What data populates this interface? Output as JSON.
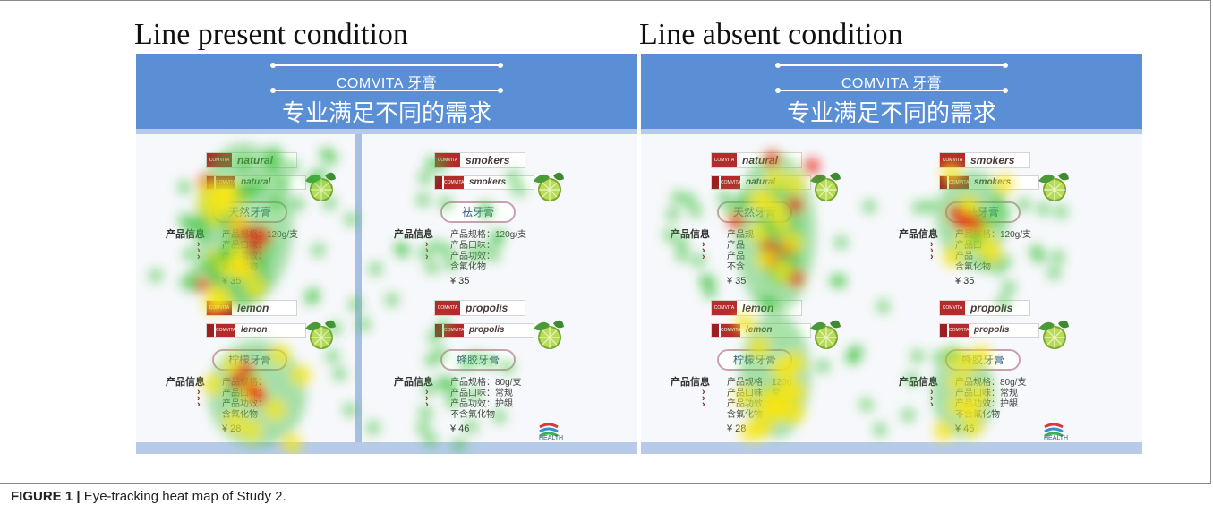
{
  "conditions": [
    {
      "title": "Line present condition",
      "brand": "COMVITA 牙膏",
      "slogan": "专业满足不同的需求",
      "has_line": true,
      "products": [
        {
          "tube_name": "natural",
          "tube_name_small": "natural",
          "pill": "天然牙膏",
          "pill_visible": "天",
          "pill_visible2": "膏",
          "info_label": "产品信息",
          "spec_lines": [
            "产品规格：120g/支",
            "产品口味：",
            "产品功效：",
            "含氟化物"
          ],
          "price": "¥ 35",
          "brand_small": "COMVITA"
        },
        {
          "tube_name": "smokers",
          "tube_name_small": "smokers",
          "pill": "祛牙膏",
          "info_label": "产品信息",
          "spec_lines": [
            "产品规格：120g/支",
            "产品口味：",
            "产品功效：",
            "含氟化物"
          ],
          "price": "¥ 35",
          "brand_small": "COMVITA"
        },
        {
          "tube_name": "lemon",
          "tube_name_small": "lemon",
          "pill": "柠檬牙膏",
          "info_label": "产品信息",
          "spec_lines": [
            "产品规格：",
            "产品口味：",
            "产品功效：",
            "含氟化物"
          ],
          "price": "¥ 28",
          "brand_small": "COMVITA"
        },
        {
          "tube_name": "propolis",
          "tube_name_small": "propolis",
          "pill": "蜂胶牙膏",
          "info_label": "产品信息",
          "spec_lines": [
            "产品规格：80g/支",
            "产品口味：常规",
            "产品功效：护龈",
            "不含氟化物"
          ],
          "price": "¥ 46",
          "brand_small": "COMVITA"
        }
      ],
      "logo_text": "HEALTH"
    },
    {
      "title": "Line absent condition",
      "brand": "COMVITA 牙膏",
      "slogan": "专业满足不同的需求",
      "has_line": false,
      "products": [
        {
          "tube_name": "natural",
          "tube_name_small": "natural",
          "pill": "天然牙膏",
          "info_label": "产品信息",
          "spec_lines": [
            "产品规",
            "产品",
            "产品",
            "不含"
          ],
          "price": "¥ 35",
          "brand_small": "COMVITA"
        },
        {
          "tube_name": "smokers",
          "tube_name_small": "smokers",
          "pill": "祛牙膏",
          "info_label": "产品信息",
          "spec_lines": [
            "产品规格：120g/支",
            "产品口",
            "产品",
            "含氟化物"
          ],
          "price": "¥ 35",
          "brand_small": "COMVITA"
        },
        {
          "tube_name": "lemon",
          "tube_name_small": "lemon",
          "pill": "柠檬牙膏",
          "info_label": "产品信息",
          "spec_lines": [
            "产品规格：120g",
            "产品口味：常",
            "产品功效：",
            "含氟化物"
          ],
          "price": "¥ 28",
          "brand_small": "COMVITA"
        },
        {
          "tube_name": "propolis",
          "tube_name_small": "propolis",
          "pill": "蜂胶牙膏",
          "info_label": "产品信息",
          "spec_lines": [
            "产品规格：80g/支",
            "产品口味：常规",
            "产品功效：护龈",
            "不含氟化物"
          ],
          "price": "¥ 46",
          "brand_small": "COMVITA"
        }
      ],
      "logo_text": "HEALTH"
    }
  ],
  "caption": {
    "label": "FIGURE 1 |",
    "text": " Eye-tracking heat map of Study 2."
  },
  "colors": {
    "banner": "#5a8fd6",
    "strip": "#b7cbe9",
    "heat_low": "#3fc23f",
    "heat_mid": "#f5e51a",
    "heat_high": "#e8241a"
  }
}
